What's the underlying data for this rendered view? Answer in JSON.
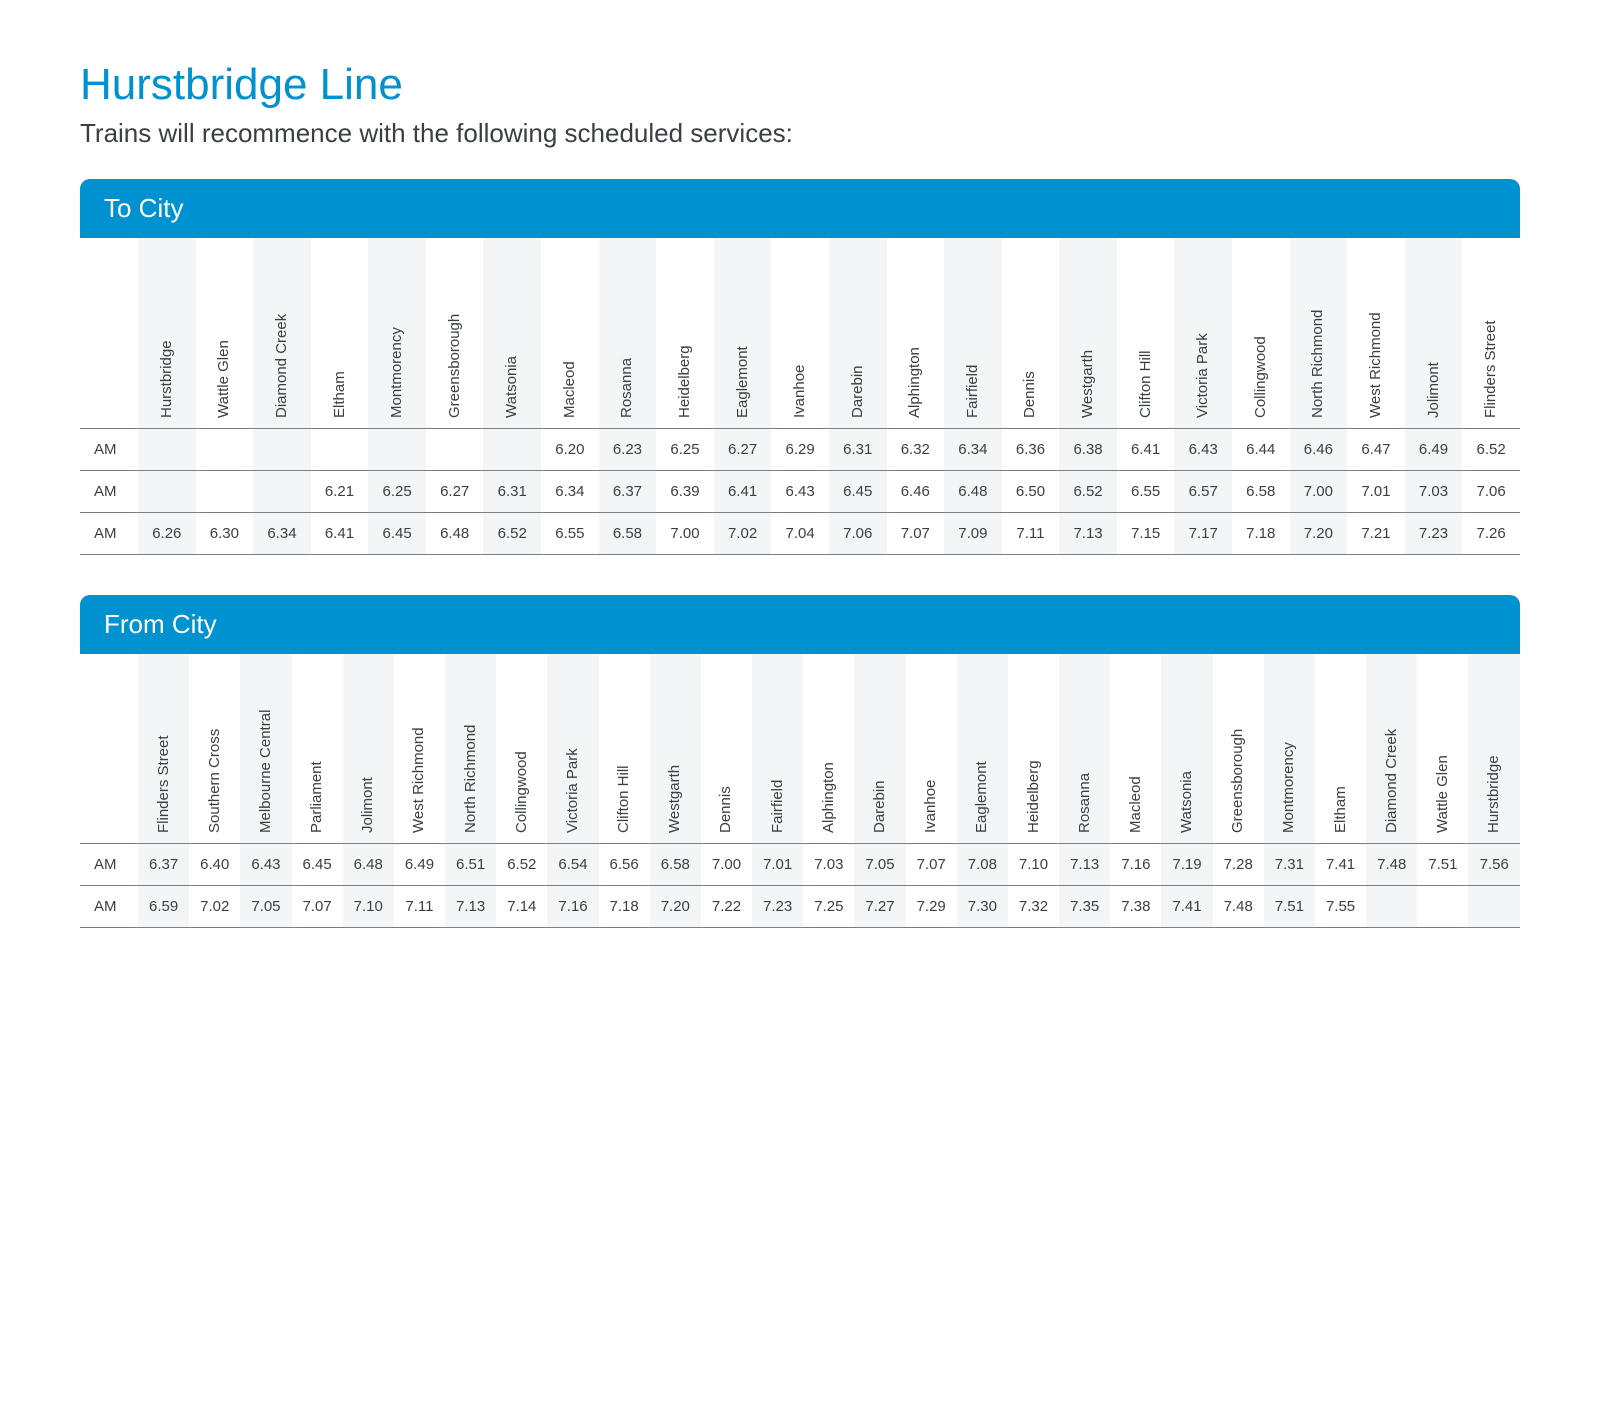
{
  "colors": {
    "title": "#0091d0",
    "text": "#3a3f44",
    "headerBg": "#0091d0",
    "stripeEven": "#f4f5f6",
    "stripeOdd": "#ffffff",
    "rowBorder": "#7a7f85"
  },
  "title": "Hurstbridge Line",
  "subtitle": "Trains will recommence with the following scheduled services:",
  "sections": [
    {
      "name": "To City",
      "stations": [
        "Hurstbridge",
        "Wattle Glen",
        "Diamond Creek",
        "Eltham",
        "Montmorency",
        "Greensborough",
        "Watsonia",
        "Macleod",
        "Rosanna",
        "Heidelberg",
        "Eaglemont",
        "Ivanhoe",
        "Darebin",
        "Alphington",
        "Fairfield",
        "Dennis",
        "Westgarth",
        "Clifton Hill",
        "Victoria Park",
        "Collingwood",
        "North Richmond",
        "West Richmond",
        "Jolimont",
        "Flinders Street"
      ],
      "rows": [
        {
          "period": "AM",
          "times": [
            "",
            "",
            "",
            "",
            "",
            "",
            "",
            "6.20",
            "6.23",
            "6.25",
            "6.27",
            "6.29",
            "6.31",
            "6.32",
            "6.34",
            "6.36",
            "6.38",
            "6.41",
            "6.43",
            "6.44",
            "6.46",
            "6.47",
            "6.49",
            "6.52"
          ]
        },
        {
          "period": "AM",
          "times": [
            "",
            "",
            "",
            "6.21",
            "6.25",
            "6.27",
            "6.31",
            "6.34",
            "6.37",
            "6.39",
            "6.41",
            "6.43",
            "6.45",
            "6.46",
            "6.48",
            "6.50",
            "6.52",
            "6.55",
            "6.57",
            "6.58",
            "7.00",
            "7.01",
            "7.03",
            "7.06"
          ]
        },
        {
          "period": "AM",
          "times": [
            "6.26",
            "6.30",
            "6.34",
            "6.41",
            "6.45",
            "6.48",
            "6.52",
            "6.55",
            "6.58",
            "7.00",
            "7.02",
            "7.04",
            "7.06",
            "7.07",
            "7.09",
            "7.11",
            "7.13",
            "7.15",
            "7.17",
            "7.18",
            "7.20",
            "7.21",
            "7.23",
            "7.26"
          ]
        }
      ]
    },
    {
      "name": "From City",
      "stations": [
        "Flinders Street",
        "Southern Cross",
        "Melbourne Central",
        "Parliament",
        "Jolimont",
        "West Richmond",
        "North Richmond",
        "Collingwood",
        "Victoria Park",
        "Clifton Hill",
        "Westgarth",
        "Dennis",
        "Fairfield",
        "Alphington",
        "Darebin",
        "Ivanhoe",
        "Eaglemont",
        "Heidelberg",
        "Rosanna",
        "Macleod",
        "Watsonia",
        "Greensborough",
        "Montmorency",
        "Eltham",
        "Diamond Creek",
        "Wattle Glen",
        "Hurstbridge"
      ],
      "rows": [
        {
          "period": "AM",
          "times": [
            "6.37",
            "6.40",
            "6.43",
            "6.45",
            "6.48",
            "6.49",
            "6.51",
            "6.52",
            "6.54",
            "6.56",
            "6.58",
            "7.00",
            "7.01",
            "7.03",
            "7.05",
            "7.07",
            "7.08",
            "7.10",
            "7.13",
            "7.16",
            "7.19",
            "7.28",
            "7.31",
            "7.41",
            "7.48",
            "7.51",
            "7.56"
          ]
        },
        {
          "period": "AM",
          "times": [
            "6.59",
            "7.02",
            "7.05",
            "7.07",
            "7.10",
            "7.11",
            "7.13",
            "7.14",
            "7.16",
            "7.18",
            "7.20",
            "7.22",
            "7.23",
            "7.25",
            "7.27",
            "7.29",
            "7.30",
            "7.32",
            "7.35",
            "7.38",
            "7.41",
            "7.48",
            "7.51",
            "7.55",
            "",
            "",
            ""
          ]
        }
      ]
    }
  ]
}
